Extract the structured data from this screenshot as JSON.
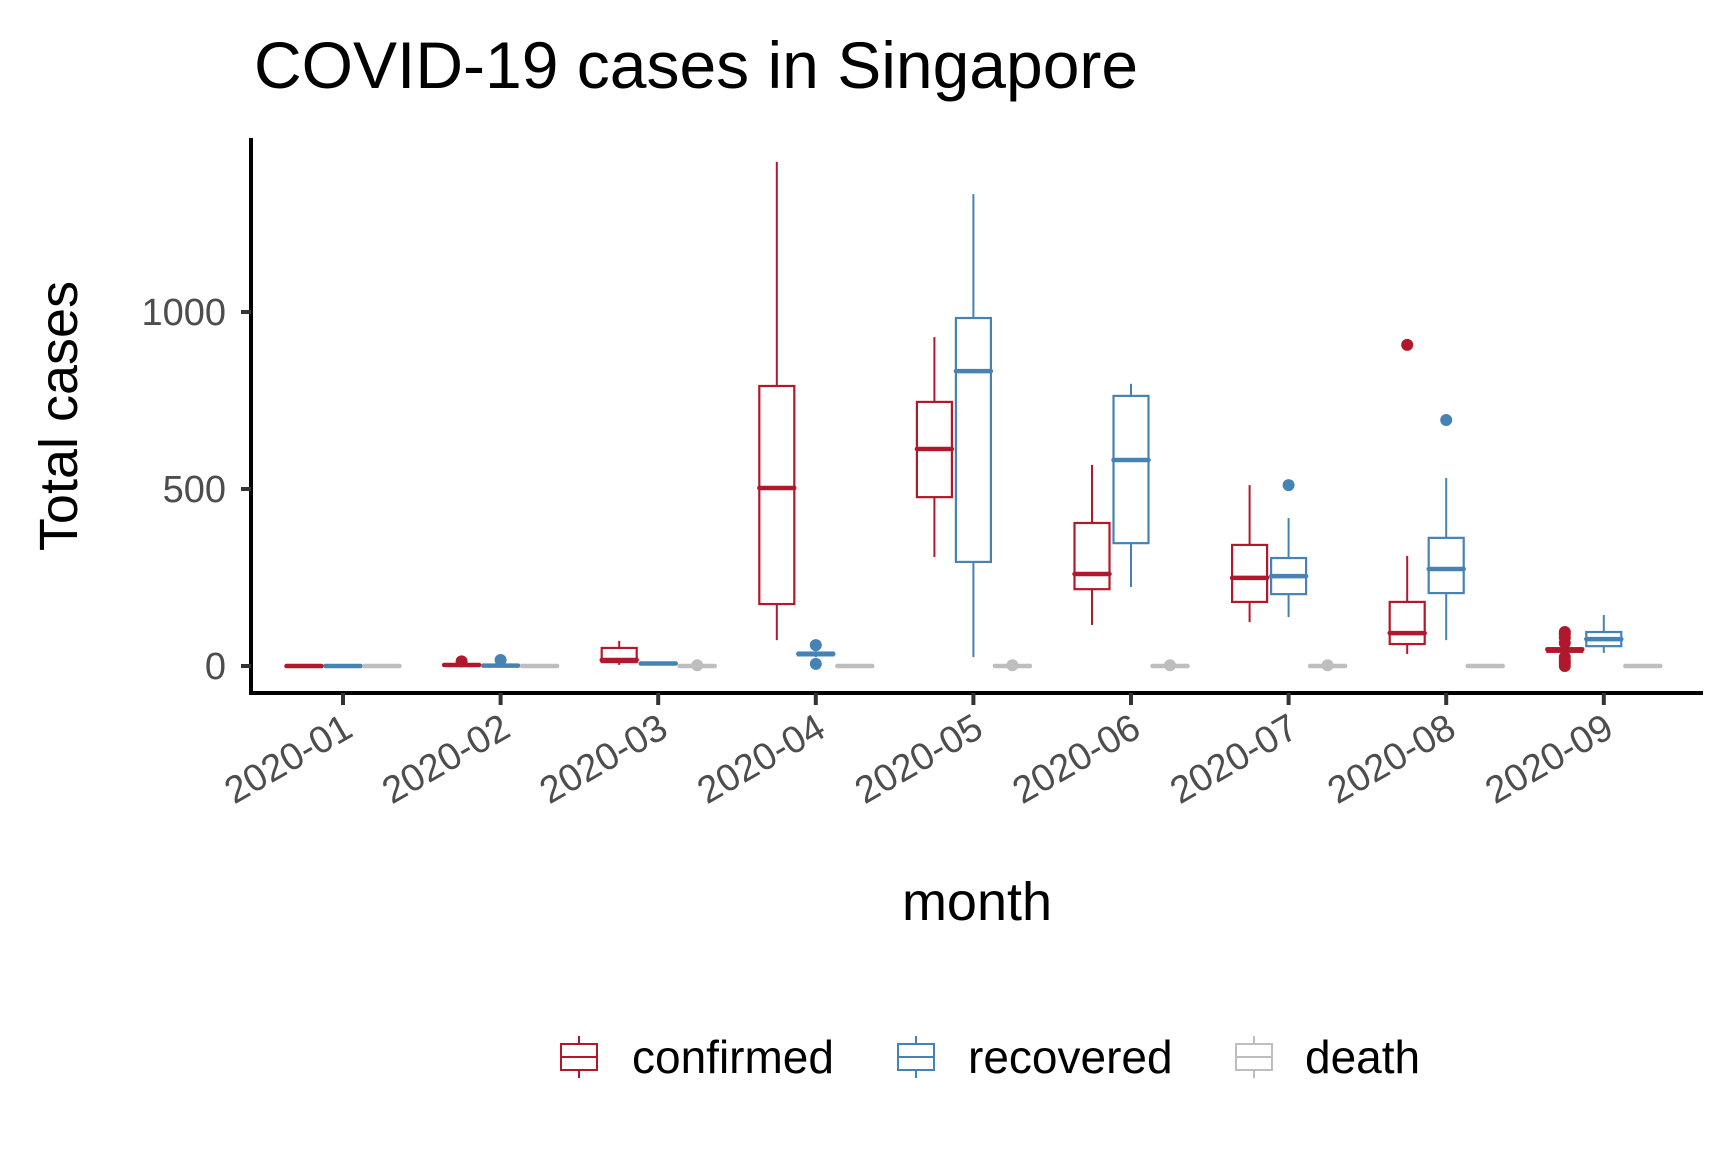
{
  "chart_data": {
    "type": "boxplot",
    "title": "COVID-19 cases in Singapore",
    "xlabel": "month",
    "ylabel": "Total cases",
    "ylim": [
      -70,
      1480
    ],
    "yticks": [
      0,
      500,
      1000
    ],
    "ytick_labels": [
      "0",
      "500",
      "1000"
    ],
    "categories": [
      "2020-01",
      "2020-02",
      "2020-03",
      "2020-04",
      "2020-05",
      "2020-06",
      "2020-07",
      "2020-08",
      "2020-09"
    ],
    "x_tick_rotation_deg": 30,
    "grid": false,
    "legend": {
      "position": "bottom",
      "entries": [
        "confirmed",
        "recovered",
        "death"
      ]
    },
    "series": [
      {
        "name": "confirmed",
        "color": "#B2182B",
        "boxes": [
          {
            "min": 0,
            "q1": 0,
            "median": 0,
            "q3": 0,
            "max": 0,
            "outliers": []
          },
          {
            "min": 0,
            "q1": 1,
            "median": 3,
            "q3": 5,
            "max": 8,
            "outliers": [
              13
            ]
          },
          {
            "min": 3,
            "q1": 11,
            "median": 17,
            "q3": 51,
            "max": 71,
            "outliers": []
          },
          {
            "min": 73,
            "q1": 175,
            "median": 503,
            "q3": 791,
            "max": 1424,
            "outliers": []
          },
          {
            "min": 308,
            "q1": 477,
            "median": 613,
            "q3": 746,
            "max": 929,
            "outliers": []
          },
          {
            "min": 116,
            "q1": 217,
            "median": 260,
            "q3": 404,
            "max": 568,
            "outliers": []
          },
          {
            "min": 124,
            "q1": 181,
            "median": 249,
            "q3": 342,
            "max": 511,
            "outliers": []
          },
          {
            "min": 34,
            "q1": 62,
            "median": 93,
            "q3": 181,
            "max": 311,
            "outliers": [
              907
            ]
          },
          {
            "min": 47,
            "q1": 40,
            "median": 47,
            "q3": 50,
            "max": 47,
            "outliers": [
              0,
              8,
              15,
              25,
              65,
              80,
              90,
              96
            ]
          }
        ]
      },
      {
        "name": "recovered",
        "color": "#4682B4",
        "boxes": [
          {
            "min": 0,
            "q1": 0,
            "median": 0,
            "q3": 0,
            "max": 0,
            "outliers": []
          },
          {
            "min": 0,
            "q1": 0,
            "median": 1,
            "q3": 2,
            "max": 3,
            "outliers": [
              17
            ]
          },
          {
            "min": 3,
            "q1": 5,
            "median": 7,
            "q3": 9,
            "max": 11,
            "outliers": []
          },
          {
            "min": 25,
            "q1": 30,
            "median": 34,
            "q3": 38,
            "max": 42,
            "outliers": [
              6,
              59
            ]
          },
          {
            "min": 25,
            "q1": 294,
            "median": 833,
            "q3": 983,
            "max": 1333,
            "outliers": []
          },
          {
            "min": 223,
            "q1": 347,
            "median": 582,
            "q3": 763,
            "max": 797,
            "outliers": []
          },
          {
            "min": 138,
            "q1": 203,
            "median": 254,
            "q3": 305,
            "max": 418,
            "outliers": [
              511
            ]
          },
          {
            "min": 73,
            "q1": 206,
            "median": 274,
            "q3": 362,
            "max": 531,
            "outliers": [
              695
            ]
          },
          {
            "min": 37,
            "q1": 56,
            "median": 76,
            "q3": 96,
            "max": 144,
            "outliers": []
          }
        ]
      },
      {
        "name": "death",
        "color": "#BEBEBE",
        "boxes": [
          {
            "min": 0,
            "q1": 0,
            "median": 0,
            "q3": 0,
            "max": 0,
            "outliers": []
          },
          {
            "min": 0,
            "q1": 0,
            "median": 0,
            "q3": 0,
            "max": 0,
            "outliers": []
          },
          {
            "min": 0,
            "q1": 0,
            "median": 0,
            "q3": 0,
            "max": 0,
            "outliers": [
              2
            ]
          },
          {
            "min": 0,
            "q1": 0,
            "median": 0,
            "q3": 0,
            "max": 0,
            "outliers": []
          },
          {
            "min": 0,
            "q1": 0,
            "median": 0,
            "q3": 0,
            "max": 0,
            "outliers": [
              2
            ]
          },
          {
            "min": 0,
            "q1": 0,
            "median": 0,
            "q3": 0,
            "max": 0,
            "outliers": [
              2
            ]
          },
          {
            "min": 0,
            "q1": 0,
            "median": 0,
            "q3": 0,
            "max": 0,
            "outliers": [
              2
            ]
          },
          {
            "min": 0,
            "q1": 0,
            "median": 0,
            "q3": 0,
            "max": 0,
            "outliers": []
          },
          {
            "min": 0,
            "q1": 0,
            "median": 0,
            "q3": 0,
            "max": 0,
            "outliers": []
          }
        ]
      }
    ]
  }
}
